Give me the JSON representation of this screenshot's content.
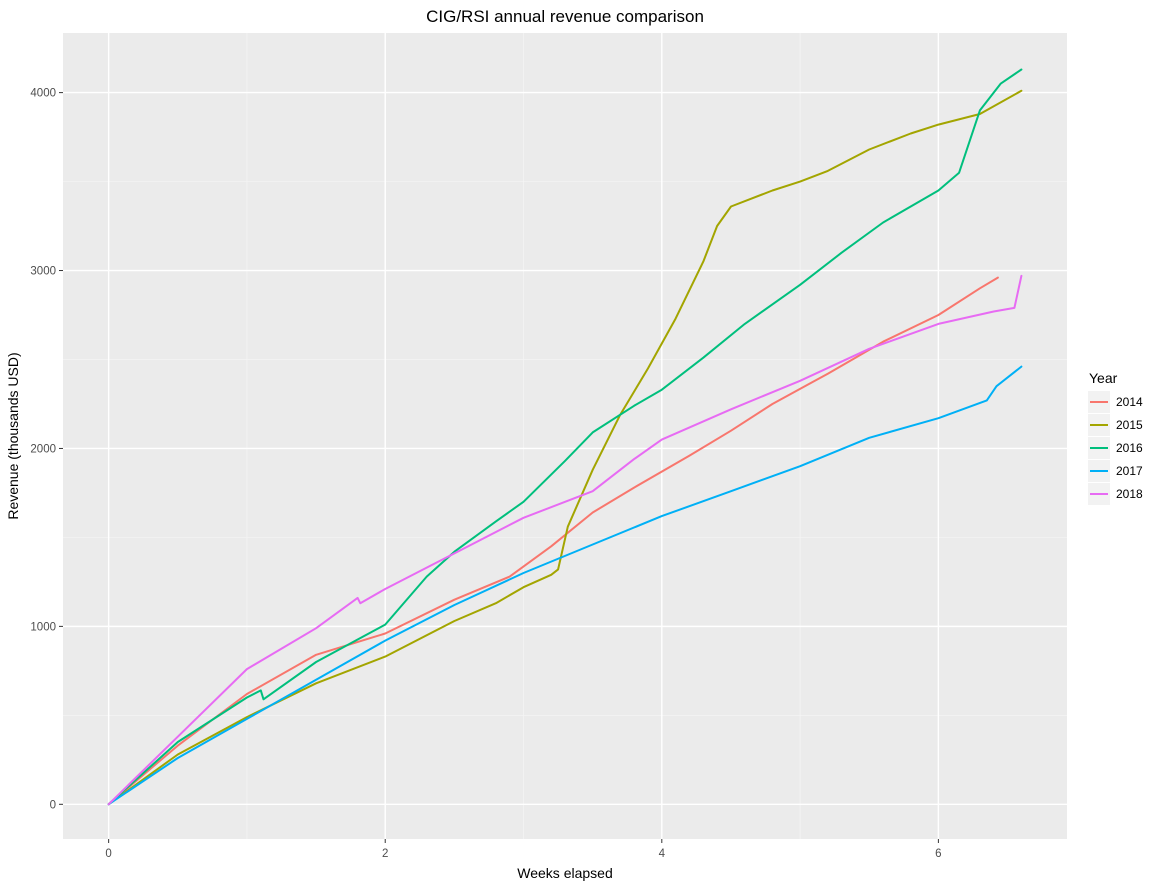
{
  "chart_data": {
    "type": "line",
    "title": "CIG/RSI annual revenue comparison",
    "xlabel": "Weeks elapsed",
    "ylabel": "Revenue (thousands USD)",
    "xlim": [
      -0.33,
      6.93
    ],
    "ylim": [
      -195,
      4335
    ],
    "x_ticks": [
      0,
      2,
      4,
      6
    ],
    "x_tick_labels": [
      "0",
      "2",
      "4",
      "6"
    ],
    "x_minor_ticks": [
      1,
      3,
      5
    ],
    "y_ticks": [
      0,
      1000,
      2000,
      3000,
      4000
    ],
    "y_tick_labels": [
      "0",
      "1000",
      "2000",
      "3000",
      "4000"
    ],
    "y_minor_ticks": [
      500,
      1500,
      2500,
      3500
    ],
    "grid": true,
    "legend_title": "Year",
    "legend_position": "right",
    "series": [
      {
        "name": "2014",
        "color": "#F8766D",
        "points": [
          [
            0,
            0
          ],
          [
            0.5,
            330
          ],
          [
            1,
            620
          ],
          [
            1.5,
            840
          ],
          [
            2,
            960
          ],
          [
            2.5,
            1150
          ],
          [
            2.9,
            1280
          ],
          [
            3.2,
            1450
          ],
          [
            3.5,
            1640
          ],
          [
            3.8,
            1780
          ],
          [
            4.2,
            1960
          ],
          [
            4.5,
            2100
          ],
          [
            4.8,
            2250
          ],
          [
            5.2,
            2420
          ],
          [
            5.6,
            2600
          ],
          [
            6,
            2750
          ],
          [
            6.3,
            2900
          ],
          [
            6.43,
            2960
          ]
        ]
      },
      {
        "name": "2015",
        "color": "#A3A500",
        "points": [
          [
            0,
            0
          ],
          [
            0.5,
            280
          ],
          [
            1,
            490
          ],
          [
            1.5,
            680
          ],
          [
            2,
            830
          ],
          [
            2.5,
            1030
          ],
          [
            2.8,
            1130
          ],
          [
            3,
            1220
          ],
          [
            3.2,
            1290
          ],
          [
            3.25,
            1320
          ],
          [
            3.32,
            1560
          ],
          [
            3.5,
            1880
          ],
          [
            3.7,
            2190
          ],
          [
            3.9,
            2450
          ],
          [
            4.1,
            2730
          ],
          [
            4.3,
            3050
          ],
          [
            4.4,
            3250
          ],
          [
            4.5,
            3360
          ],
          [
            4.8,
            3450
          ],
          [
            5,
            3500
          ],
          [
            5.2,
            3560
          ],
          [
            5.5,
            3680
          ],
          [
            5.8,
            3770
          ],
          [
            6,
            3820
          ],
          [
            6.3,
            3880
          ],
          [
            6.6,
            4010
          ]
        ]
      },
      {
        "name": "2016",
        "color": "#00BF7D",
        "points": [
          [
            0,
            0
          ],
          [
            0.5,
            350
          ],
          [
            1,
            600
          ],
          [
            1.1,
            640
          ],
          [
            1.12,
            590
          ],
          [
            1.5,
            800
          ],
          [
            2,
            1010
          ],
          [
            2.3,
            1280
          ],
          [
            2.5,
            1420
          ],
          [
            2.8,
            1590
          ],
          [
            3,
            1700
          ],
          [
            3.3,
            1930
          ],
          [
            3.5,
            2090
          ],
          [
            3.8,
            2240
          ],
          [
            4,
            2330
          ],
          [
            4.3,
            2510
          ],
          [
            4.6,
            2700
          ],
          [
            5,
            2920
          ],
          [
            5.3,
            3100
          ],
          [
            5.6,
            3270
          ],
          [
            6,
            3450
          ],
          [
            6.15,
            3550
          ],
          [
            6.3,
            3900
          ],
          [
            6.45,
            4050
          ],
          [
            6.6,
            4130
          ]
        ]
      },
      {
        "name": "2017",
        "color": "#00B0F6",
        "points": [
          [
            0,
            0
          ],
          [
            0.5,
            260
          ],
          [
            1,
            480
          ],
          [
            1.5,
            700
          ],
          [
            2,
            920
          ],
          [
            2.5,
            1120
          ],
          [
            3,
            1300
          ],
          [
            3.5,
            1460
          ],
          [
            4,
            1620
          ],
          [
            4.5,
            1760
          ],
          [
            5,
            1900
          ],
          [
            5.5,
            2060
          ],
          [
            6,
            2170
          ],
          [
            6.35,
            2270
          ],
          [
            6.42,
            2350
          ],
          [
            6.6,
            2460
          ]
        ]
      },
      {
        "name": "2018",
        "color": "#E76BF3",
        "points": [
          [
            0,
            0
          ],
          [
            0.5,
            380
          ],
          [
            1,
            760
          ],
          [
            1.5,
            990
          ],
          [
            1.8,
            1160
          ],
          [
            1.82,
            1130
          ],
          [
            2,
            1210
          ],
          [
            2.5,
            1410
          ],
          [
            3,
            1610
          ],
          [
            3.5,
            1760
          ],
          [
            3.8,
            1940
          ],
          [
            4,
            2050
          ],
          [
            4.5,
            2220
          ],
          [
            5,
            2380
          ],
          [
            5.5,
            2560
          ],
          [
            6,
            2700
          ],
          [
            6.4,
            2770
          ],
          [
            6.55,
            2790
          ],
          [
            6.6,
            2970
          ]
        ]
      }
    ]
  }
}
